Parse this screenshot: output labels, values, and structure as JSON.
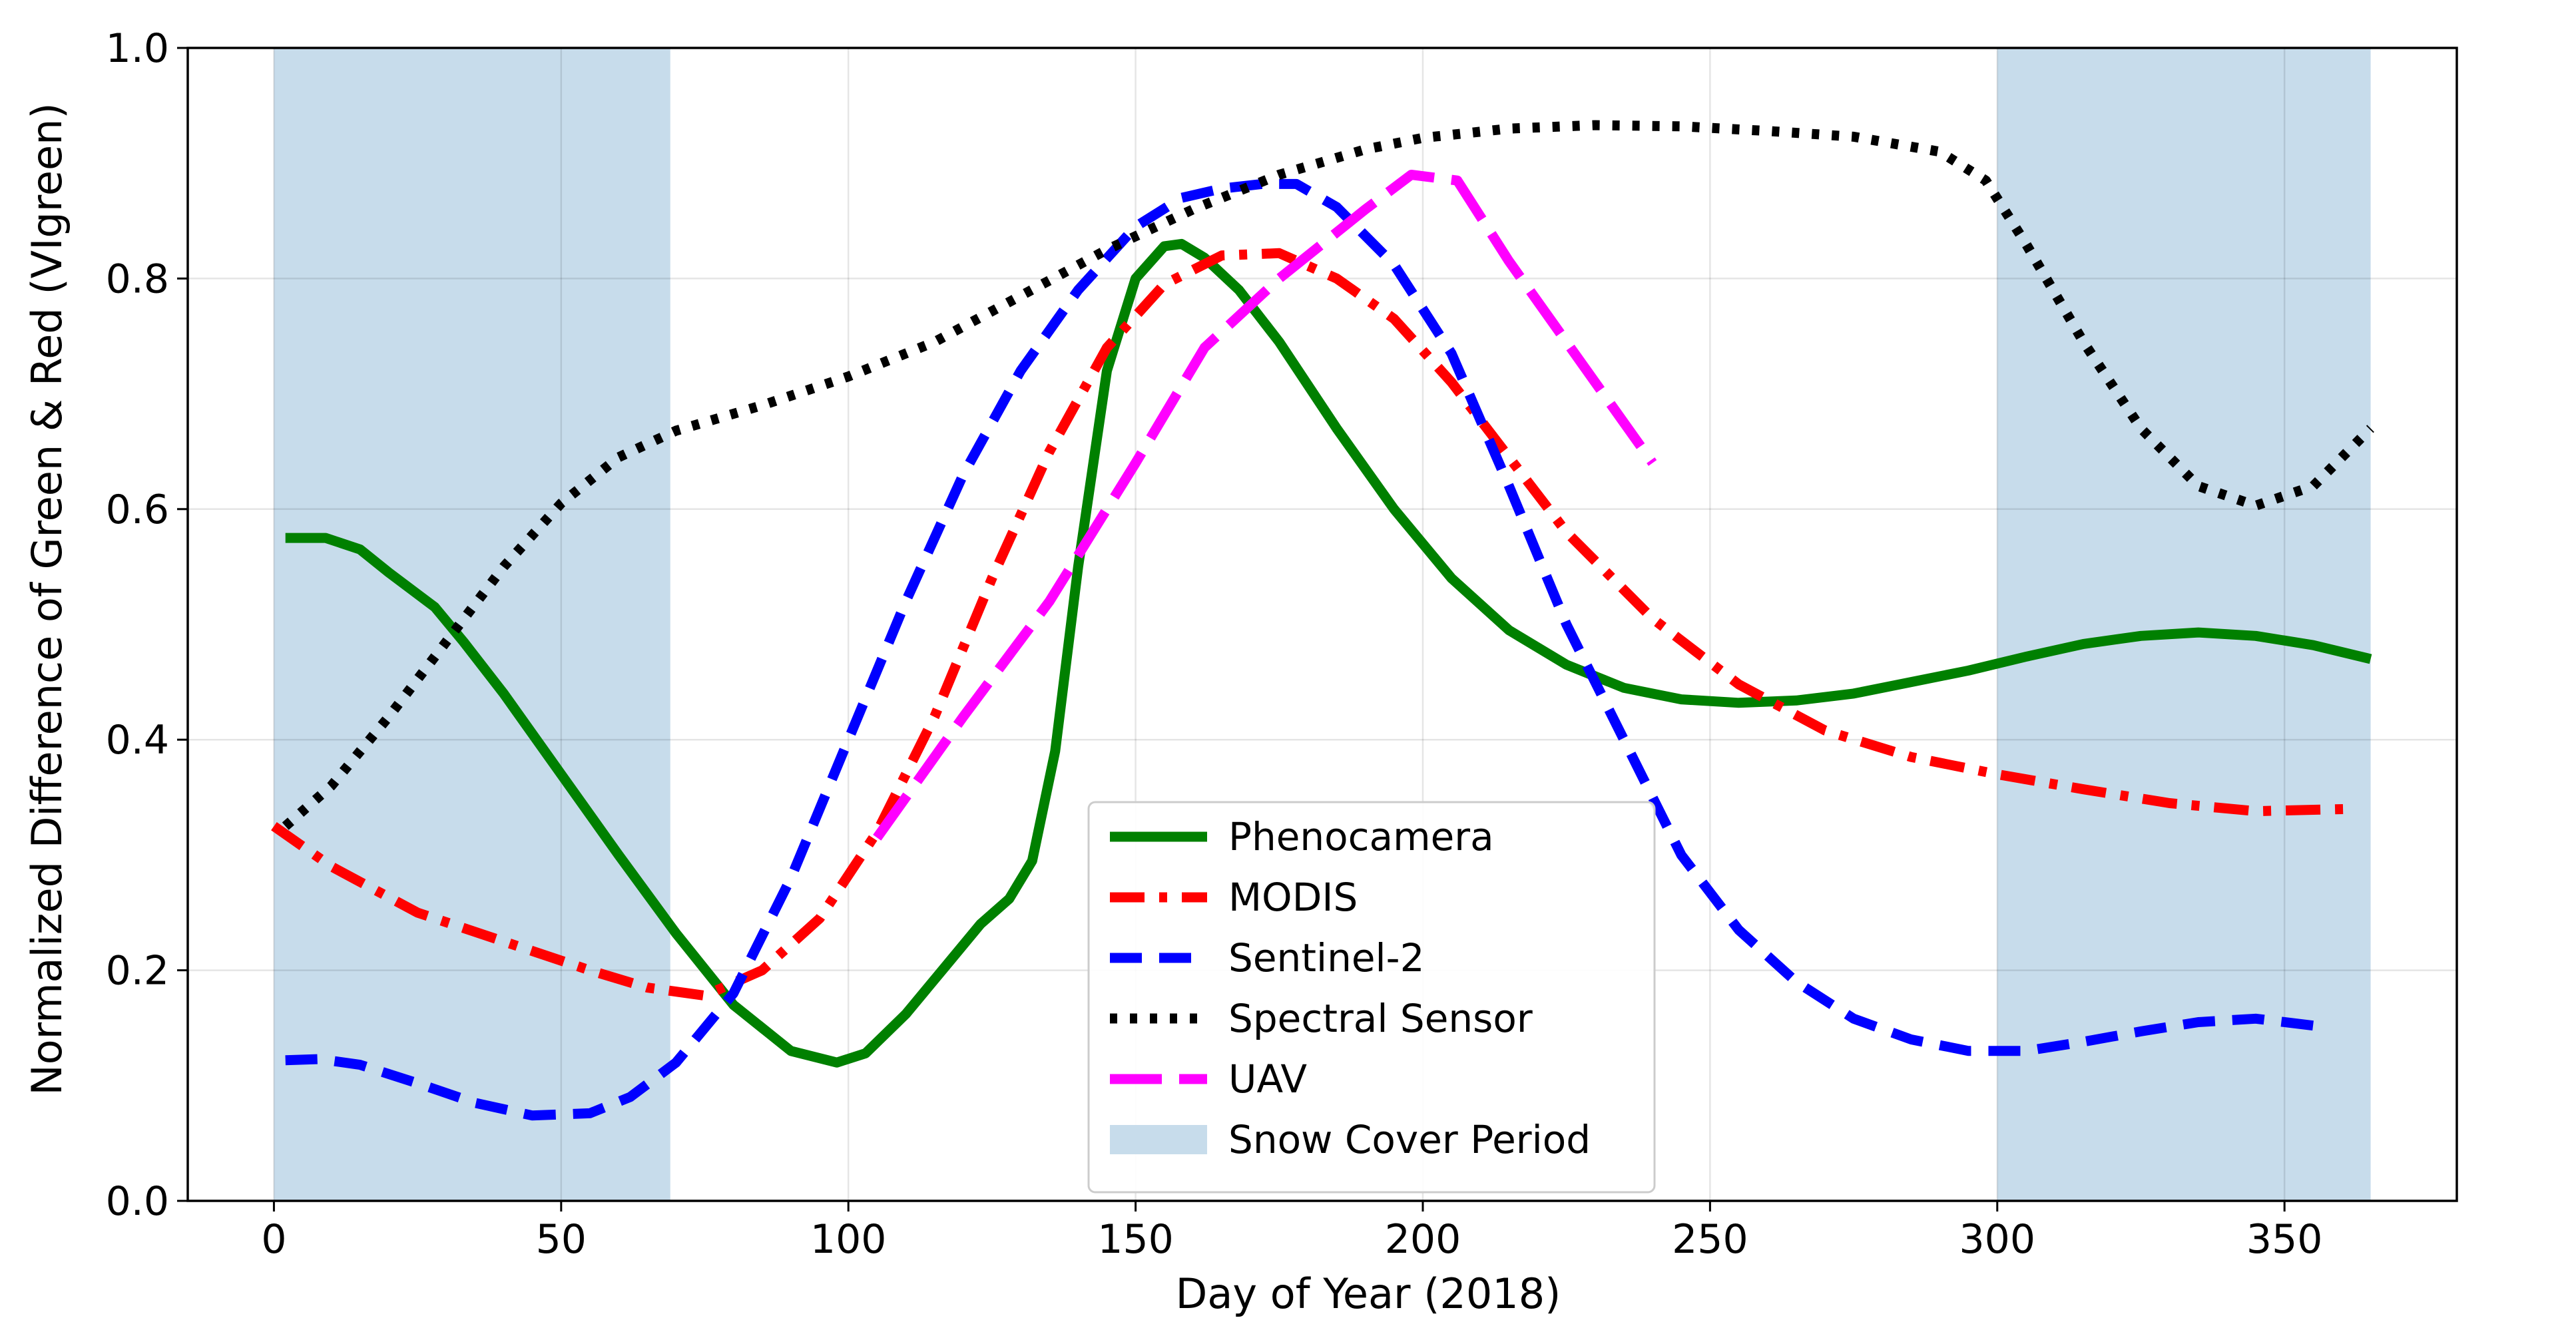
{
  "chart_data": {
    "type": "line",
    "title": "",
    "xlabel": "Day of Year (2018)",
    "ylabel": "Normalized Difference of Green & Red (VIgreen)",
    "xlim": [
      -15,
      380
    ],
    "ylim": [
      0.0,
      1.0
    ],
    "xticks": [
      0,
      50,
      100,
      150,
      200,
      250,
      300,
      350
    ],
    "yticks": [
      0.0,
      0.2,
      0.4,
      0.6,
      0.8,
      1.0
    ],
    "xtick_labels": [
      "0",
      "50",
      "100",
      "150",
      "200",
      "250",
      "300",
      "350"
    ],
    "ytick_labels": [
      "0.0",
      "0.2",
      "0.4",
      "0.6",
      "0.8",
      "1.0"
    ],
    "grid": true,
    "legend_position": "lower-center",
    "snow_cover_periods": [
      [
        0,
        69
      ],
      [
        300,
        365
      ]
    ],
    "snow_cover_label": "Snow Cover Period",
    "snow_cover_color": "#c7dceb",
    "series": [
      {
        "name": "Phenocamera",
        "color": "#008000",
        "style": "solid",
        "x": [
          2,
          9,
          15,
          20,
          28,
          33,
          40,
          50,
          60,
          70,
          80,
          90,
          98,
          103,
          110,
          118,
          123,
          128,
          132,
          136,
          140,
          145,
          150,
          155,
          158,
          162,
          168,
          175,
          185,
          195,
          205,
          215,
          225,
          235,
          245,
          255,
          265,
          275,
          285,
          295,
          305,
          315,
          325,
          335,
          345,
          355,
          365
        ],
        "y": [
          0.575,
          0.575,
          0.565,
          0.545,
          0.515,
          0.485,
          0.44,
          0.37,
          0.3,
          0.232,
          0.17,
          0.13,
          0.12,
          0.128,
          0.162,
          0.21,
          0.24,
          0.262,
          0.295,
          0.39,
          0.55,
          0.72,
          0.8,
          0.828,
          0.83,
          0.818,
          0.79,
          0.745,
          0.67,
          0.6,
          0.54,
          0.495,
          0.465,
          0.445,
          0.435,
          0.432,
          0.434,
          0.44,
          0.45,
          0.46,
          0.472,
          0.483,
          0.49,
          0.493,
          0.49,
          0.482,
          0.47
        ]
      },
      {
        "name": "MODIS",
        "color": "#ff0000",
        "style": "dashdot",
        "x": [
          0,
          10,
          25,
          40,
          55,
          65,
          75,
          85,
          95,
          105,
          115,
          125,
          135,
          145,
          155,
          165,
          175,
          185,
          195,
          205,
          215,
          225,
          240,
          255,
          270,
          285,
          300,
          315,
          330,
          345,
          362
        ],
        "y": [
          0.325,
          0.29,
          0.25,
          0.225,
          0.2,
          0.185,
          0.178,
          0.2,
          0.245,
          0.32,
          0.42,
          0.54,
          0.65,
          0.74,
          0.795,
          0.82,
          0.822,
          0.8,
          0.765,
          0.71,
          0.645,
          0.58,
          0.505,
          0.448,
          0.408,
          0.385,
          0.37,
          0.357,
          0.345,
          0.338,
          0.34
        ]
      },
      {
        "name": "Sentinel-2",
        "color": "#0000ff",
        "style": "dashed",
        "x": [
          2,
          8,
          15,
          25,
          35,
          45,
          55,
          62,
          70,
          80,
          90,
          100,
          110,
          120,
          130,
          140,
          150,
          158,
          165,
          172,
          178,
          185,
          195,
          205,
          215,
          225,
          235,
          245,
          255,
          265,
          275,
          285,
          295,
          305,
          315,
          325,
          335,
          345,
          355
        ],
        "y": [
          0.122,
          0.123,
          0.118,
          0.102,
          0.085,
          0.074,
          0.076,
          0.09,
          0.12,
          0.18,
          0.28,
          0.4,
          0.52,
          0.63,
          0.72,
          0.79,
          0.845,
          0.87,
          0.878,
          0.882,
          0.882,
          0.862,
          0.812,
          0.735,
          0.62,
          0.5,
          0.4,
          0.3,
          0.235,
          0.19,
          0.158,
          0.14,
          0.13,
          0.13,
          0.138,
          0.147,
          0.155,
          0.158,
          0.152
        ]
      },
      {
        "name": "Spectral Sensor",
        "color": "#000000",
        "style": "dotted",
        "x": [
          2,
          10,
          20,
          30,
          40,
          50,
          60,
          70,
          85,
          100,
          115,
          130,
          145,
          160,
          175,
          190,
          200,
          215,
          230,
          245,
          260,
          275,
          290,
          298,
          305,
          315,
          325,
          335,
          345,
          355,
          365
        ],
        "y": [
          0.325,
          0.36,
          0.42,
          0.485,
          0.55,
          0.605,
          0.645,
          0.668,
          0.69,
          0.715,
          0.745,
          0.785,
          0.825,
          0.86,
          0.89,
          0.912,
          0.922,
          0.93,
          0.933,
          0.932,
          0.928,
          0.923,
          0.91,
          0.885,
          0.83,
          0.745,
          0.67,
          0.62,
          0.603,
          0.62,
          0.67
        ]
      },
      {
        "name": "UAV",
        "color": "#ff00ff",
        "style": "longdash",
        "x": [
          105,
          120,
          135,
          150,
          162,
          175,
          190,
          198,
          206,
          215,
          225,
          240
        ],
        "y": [
          0.315,
          0.42,
          0.52,
          0.64,
          0.74,
          0.8,
          0.86,
          0.89,
          0.885,
          0.815,
          0.745,
          0.64
        ]
      }
    ]
  }
}
